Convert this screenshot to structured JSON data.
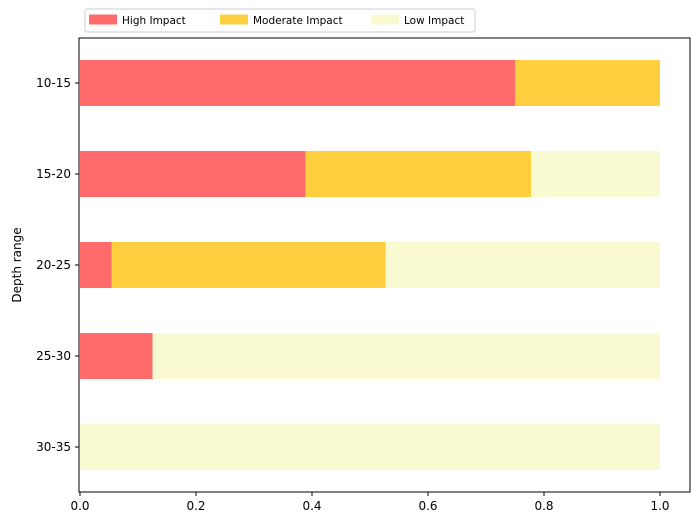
{
  "chart_data": {
    "type": "bar",
    "orientation": "horizontal",
    "stacked": true,
    "categories": [
      "10-15",
      "15-20",
      "20-25",
      "25-30",
      "30-35"
    ],
    "series": [
      {
        "name": "High Impact",
        "color": "#ff6b6b",
        "values": [
          0.75,
          0.3889,
          0.0545,
          0.125,
          0.0
        ]
      },
      {
        "name": "Moderate Impact",
        "color": "#ffcf3f",
        "values": [
          0.25,
          0.3889,
          0.4727,
          0.0,
          0.0
        ]
      },
      {
        "name": "Low Impact",
        "color": "#fafad2",
        "values": [
          0.0,
          0.2222,
          0.4728,
          0.875,
          1.0
        ]
      }
    ],
    "xlim": [
      0,
      1.05
    ],
    "xticks": [
      "0.0",
      "0.2",
      "0.4",
      "0.6",
      "0.8",
      "1.0"
    ],
    "xtick_values": [
      0,
      0.2,
      0.4,
      0.6,
      0.8,
      1.0
    ],
    "xlabel": "",
    "ylabel": "Depth range",
    "grid": false,
    "legend_position": "top-left, above plot"
  }
}
